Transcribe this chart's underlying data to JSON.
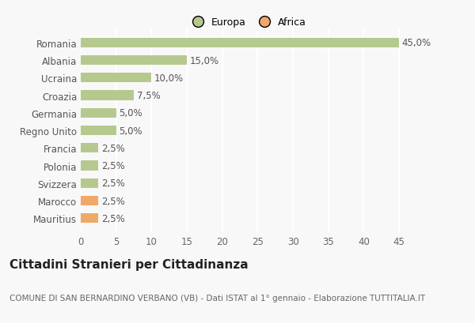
{
  "categories": [
    "Romania",
    "Albania",
    "Ucraina",
    "Croazia",
    "Germania",
    "Regno Unito",
    "Francia",
    "Polonia",
    "Svizzera",
    "Marocco",
    "Mauritius"
  ],
  "values": [
    45.0,
    15.0,
    10.0,
    7.5,
    5.0,
    5.0,
    2.5,
    2.5,
    2.5,
    2.5,
    2.5
  ],
  "labels": [
    "45,0%",
    "15,0%",
    "10,0%",
    "7,5%",
    "5,0%",
    "5,0%",
    "2,5%",
    "2,5%",
    "2,5%",
    "2,5%",
    "2,5%"
  ],
  "colors": [
    "#b5c98e",
    "#b5c98e",
    "#b5c98e",
    "#b5c98e",
    "#b5c98e",
    "#b5c98e",
    "#b5c98e",
    "#b5c98e",
    "#b5c98e",
    "#f0a868",
    "#f0a868"
  ],
  "legend_labels": [
    "Europa",
    "Africa"
  ],
  "legend_colors": [
    "#b5c98e",
    "#f0a868"
  ],
  "title": "Cittadini Stranieri per Cittadinanza",
  "subtitle": "COMUNE DI SAN BERNARDINO VERBANO (VB) - Dati ISTAT al 1° gennaio - Elaborazione TUTTITALIA.IT",
  "xlim": [
    0,
    47
  ],
  "xticks": [
    0,
    5,
    10,
    15,
    20,
    25,
    30,
    35,
    40,
    45
  ],
  "background_color": "#f8f8f8",
  "grid_color": "#ffffff",
  "bar_height": 0.55,
  "title_fontsize": 11,
  "subtitle_fontsize": 7.5,
  "tick_fontsize": 8.5,
  "label_fontsize": 8.5
}
